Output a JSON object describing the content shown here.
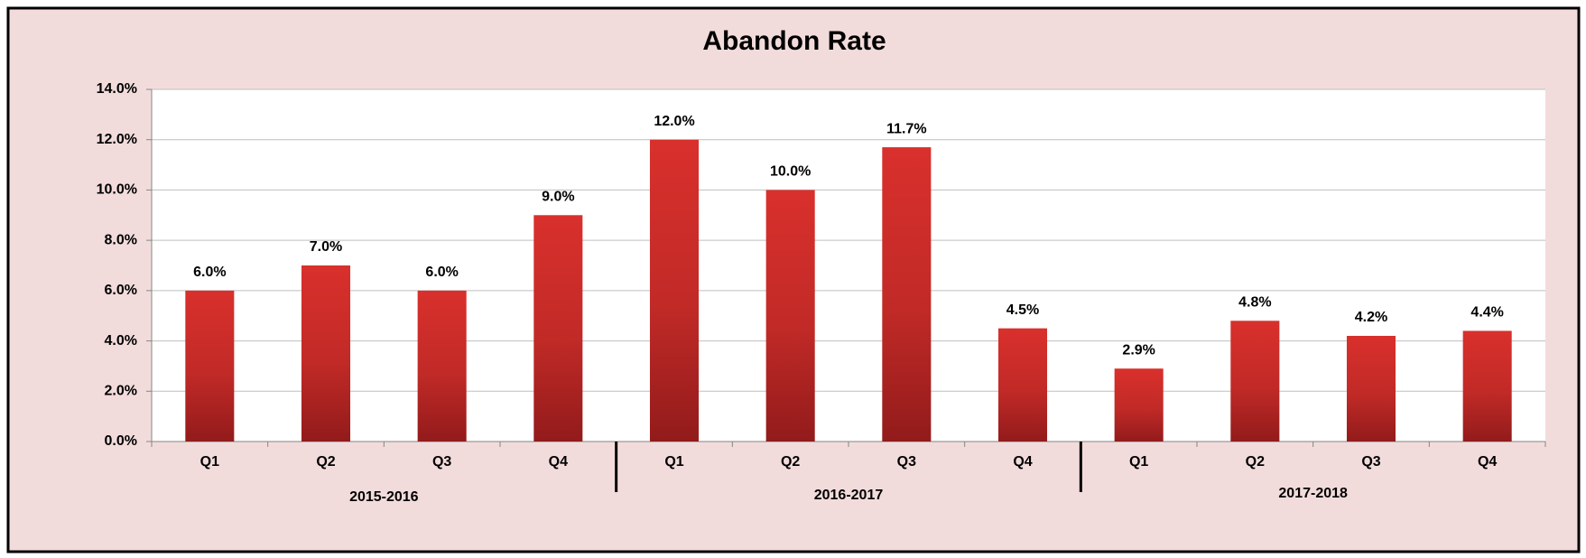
{
  "chart_data": {
    "type": "bar",
    "title": "Abandon Rate",
    "categories": [
      "Q1",
      "Q2",
      "Q3",
      "Q4",
      "Q1",
      "Q2",
      "Q3",
      "Q4",
      "Q1",
      "Q2",
      "Q3",
      "Q4"
    ],
    "groups": [
      "2015-2016",
      "2016-2017",
      "2017-2018"
    ],
    "values": [
      6.0,
      7.0,
      6.0,
      9.0,
      12.0,
      10.0,
      11.7,
      4.5,
      2.9,
      4.8,
      4.2,
      4.4
    ],
    "value_labels": [
      "6.0%",
      "7.0%",
      "6.0%",
      "9.0%",
      "12.0%",
      "10.0%",
      "11.7%",
      "4.5%",
      "2.9%",
      "4.8%",
      "4.2%",
      "4.4%"
    ],
    "color": "#d42f2b",
    "ylim": [
      0,
      14
    ],
    "yticks": [
      {
        "value": 0,
        "label": "0.0%"
      },
      {
        "value": 2,
        "label": "2.0%"
      },
      {
        "value": 4,
        "label": "4.0%"
      },
      {
        "value": 6,
        "label": "6.0%"
      },
      {
        "value": 8,
        "label": "8.0%"
      },
      {
        "value": 10,
        "label": "10.0%"
      },
      {
        "value": 12,
        "label": "12.0%"
      },
      {
        "value": 14,
        "label": "14.0%"
      }
    ],
    "grid": true
  }
}
